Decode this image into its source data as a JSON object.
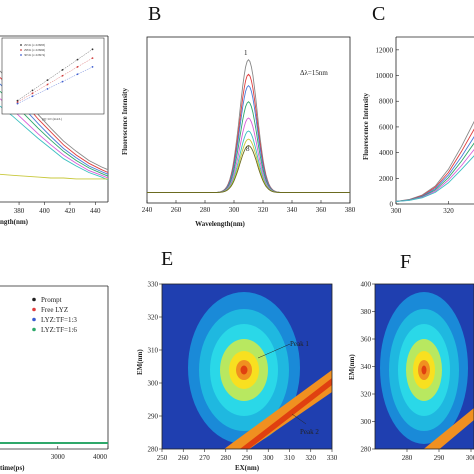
{
  "panels": {
    "B": "B",
    "C": "C",
    "E": "E",
    "F": "F"
  },
  "chart_data": [
    {
      "id": "panel_A_partial",
      "type": "line",
      "xlabel": "ngth(nm)",
      "x_ticks": [
        380,
        400,
        420,
        440
      ],
      "xlim": [
        365,
        450
      ],
      "x": [
        365,
        375,
        385,
        395,
        405,
        415,
        425,
        435,
        445,
        450
      ],
      "series": [
        {
          "color": "#888888",
          "values": [
            142,
            128,
            112,
            95,
            80,
            66,
            55,
            45,
            38,
            35
          ]
        },
        {
          "color": "#e03c3c",
          "values": [
            135,
            122,
            106,
            90,
            76,
            62,
            51,
            42,
            35,
            32
          ]
        },
        {
          "color": "#4a7ad8",
          "values": [
            128,
            115,
            100,
            85,
            71,
            58,
            48,
            39,
            33,
            30
          ]
        },
        {
          "color": "#2ea86a",
          "values": [
            120,
            108,
            94,
            80,
            67,
            55,
            45,
            37,
            31,
            28
          ]
        },
        {
          "color": "#d85cd8",
          "values": [
            112,
            100,
            87,
            74,
            62,
            51,
            42,
            34,
            29,
            26
          ]
        },
        {
          "color": "#3cc0c0",
          "values": [
            104,
            93,
            81,
            69,
            58,
            47,
            39,
            32,
            27,
            24
          ]
        },
        {
          "color": "#c8c83c",
          "values": [
            30,
            29,
            28,
            27,
            26,
            26,
            25,
            25,
            25,
            25
          ]
        }
      ],
      "inset": {
        "legend": [
          "293 K (r=0.9983)",
          "298 K (r=0.9966)",
          "303 K (r=0.9974)"
        ],
        "xlabel": "[Q]×10⁵ (mol/L)",
        "x": [
          1,
          2,
          3,
          4,
          5,
          6
        ],
        "series": [
          {
            "color": "#333333",
            "values": [
              1.05,
              1.12,
              1.19,
              1.26,
              1.33,
              1.4
            ]
          },
          {
            "color": "#d04040",
            "values": [
              1.04,
              1.1,
              1.16,
              1.22,
              1.28,
              1.34
            ]
          },
          {
            "color": "#4060d0",
            "values": [
              1.03,
              1.08,
              1.13,
              1.18,
              1.23,
              1.28
            ]
          }
        ]
      }
    },
    {
      "id": "panel_B",
      "type": "line",
      "ylabel": "Fluorescence Intensity",
      "xlabel": "Wavelength(nm)",
      "annotation": "Δλ=15nm",
      "curve_labels": [
        "1",
        "8"
      ],
      "x_ticks": [
        240,
        260,
        280,
        300,
        320,
        340,
        360,
        380
      ],
      "xlim": [
        240,
        380
      ],
      "ylim": [
        0,
        1
      ],
      "center": 310,
      "width": 6,
      "baseline": 0.04,
      "series": [
        {
          "color": "#888888",
          "peak": 0.86
        },
        {
          "color": "#e03c3c",
          "peak": 0.77
        },
        {
          "color": "#4a7ad8",
          "peak": 0.7
        },
        {
          "color": "#2ea86a",
          "peak": 0.6
        },
        {
          "color": "#d85cd8",
          "peak": 0.5
        },
        {
          "color": "#3cc0c0",
          "peak": 0.42
        },
        {
          "color": "#c8c83c",
          "peak": 0.37
        },
        {
          "color": "#6b6b20",
          "peak": 0.33
        }
      ]
    },
    {
      "id": "panel_C_partial",
      "type": "line",
      "ylabel": "Fluorescence Intensity",
      "y_ticks": [
        0,
        2000,
        4000,
        6000,
        8000,
        10000,
        12000
      ],
      "ylim": [
        0,
        13000
      ],
      "x_ticks": [
        300,
        320,
        340
      ],
      "xlim": [
        300,
        345
      ],
      "x": [
        300,
        305,
        310,
        315,
        320,
        325,
        330,
        335,
        340,
        345
      ],
      "series": [
        {
          "color": "#888888",
          "values": [
            200,
            350,
            700,
            1400,
            2700,
            4500,
            6500,
            8300,
            9700,
            10500
          ]
        },
        {
          "color": "#e03c3c",
          "values": [
            200,
            330,
            650,
            1300,
            2450,
            4100,
            5900,
            7500,
            8800,
            9600
          ]
        },
        {
          "color": "#4a7ad8",
          "values": [
            200,
            320,
            600,
            1200,
            2250,
            3700,
            5300,
            6800,
            8000,
            8800
          ]
        },
        {
          "color": "#2ea86a",
          "values": [
            200,
            300,
            560,
            1100,
            2050,
            3350,
            4800,
            6100,
            7200,
            7900
          ]
        },
        {
          "color": "#d85cd8",
          "values": [
            200,
            290,
            520,
            1000,
            1850,
            3000,
            4300,
            5500,
            6500,
            7100
          ]
        },
        {
          "color": "#3cc0c0",
          "values": [
            200,
            280,
            480,
            900,
            1650,
            2700,
            3800,
            4900,
            5800,
            6400
          ]
        }
      ]
    },
    {
      "id": "panel_D_partial",
      "type": "line",
      "xlabel": "time(ps)",
      "x_ticks": [
        3000,
        4000
      ],
      "xlim": [
        1850,
        4000
      ],
      "legend": [
        {
          "label": "Prompt",
          "color": "#222222"
        },
        {
          "label": "Free LYZ",
          "color": "#e03c3c"
        },
        {
          "label": "LYZ:TF=1:3",
          "color": "#3a5bd0"
        },
        {
          "label": "LYZ:TF=1:6",
          "color": "#2ea86a"
        }
      ]
    },
    {
      "id": "panel_E",
      "type": "heatmap",
      "xlabel": "EX(nm)",
      "ylabel": "EM(nm)",
      "x_ticks": [
        250,
        260,
        270,
        280,
        290,
        300,
        310,
        320,
        330
      ],
      "y_ticks": [
        280,
        290,
        300,
        310,
        320,
        330
      ],
      "xlim": [
        250,
        330
      ],
      "ylim": [
        280,
        330
      ],
      "annotations": [
        "Peak 1",
        "Peak 2"
      ]
    },
    {
      "id": "panel_F_partial",
      "type": "heatmap",
      "ylabel": "EM(nm)",
      "x_ticks": [
        280,
        290,
        300
      ],
      "y_ticks": [
        280,
        290,
        300,
        310,
        320,
        330,
        340,
        350,
        360,
        370,
        380,
        390,
        400
      ],
      "xlim": [
        270,
        305
      ],
      "ylim": [
        280,
        400
      ]
    }
  ]
}
